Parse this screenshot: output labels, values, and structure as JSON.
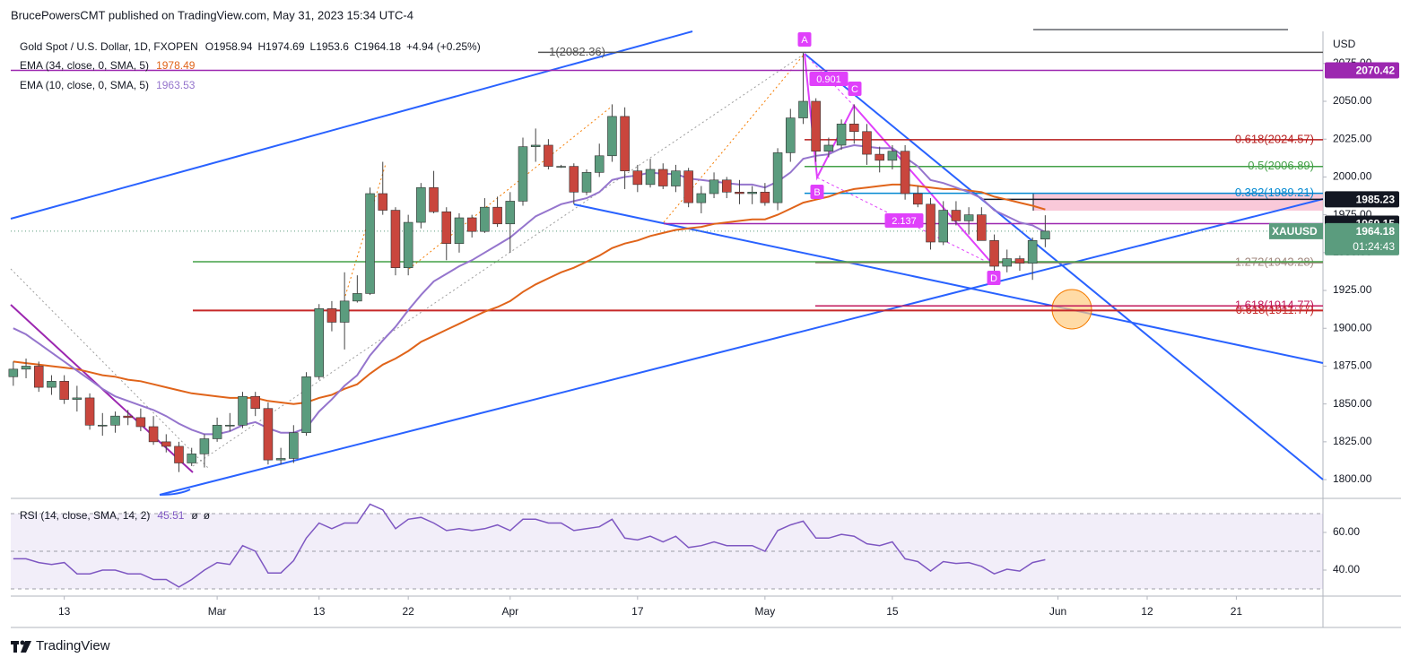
{
  "header": {
    "text": "BrucePowersCMT published on TradingView.com, May 31, 2023 15:34 UTC-4"
  },
  "footer": {
    "brand": "TradingView"
  },
  "chart_data": [
    {
      "type": "candlestick",
      "title": "Gold Spot / U.S. Dollar, 1D, FXOPEN",
      "ohlc_labels": [
        "O",
        "H",
        "L",
        "C"
      ],
      "change": "+4.94 (+0.25%)",
      "currency": "USD",
      "symbol": "XAUUSD",
      "countdown": "01:24:43",
      "up_color": "#5b9c7e",
      "down_color": "#c9463d",
      "open": [
        1868,
        1873,
        1875,
        1861,
        1865,
        1853,
        1854,
        1836,
        1836,
        1842,
        1841,
        1835,
        1825,
        1822,
        1811,
        1817,
        1827,
        1836,
        1836,
        1855,
        1847,
        1813,
        1814,
        1831,
        1868,
        1913,
        1904,
        1918,
        1923,
        1989,
        1978,
        1940,
        1970,
        1993,
        1977,
        1956,
        1973,
        1964,
        1980,
        1969,
        1984,
        2020,
        2021,
        2007,
        2007,
        1990,
        2003,
        2014,
        2040,
        2004,
        1995,
        2005,
        1994,
        2004,
        1983,
        1989,
        1998,
        1990,
        1989,
        1990,
        1983,
        2016,
        2039,
        2050,
        2017,
        2021,
        2035,
        2030,
        2015,
        2011,
        2017,
        1989,
        1982,
        1957,
        1978,
        1971,
        1975,
        1958,
        1941,
        1946,
        1943,
        1958.94
      ],
      "high": [
        1878,
        1880,
        1878,
        1869,
        1869,
        1862,
        1857,
        1844,
        1845,
        1846,
        1847,
        1842,
        1830,
        1825,
        1821,
        1830,
        1841,
        1844,
        1858,
        1858,
        1851,
        1821,
        1836,
        1871,
        1916,
        1918,
        1937,
        1935,
        1993,
        2010,
        1980,
        1975,
        1996,
        2004,
        1980,
        1976,
        1975,
        1986,
        1987,
        1990,
        2026,
        2032,
        2025,
        2008,
        2009,
        2005,
        2022,
        2048,
        2046,
        2008,
        2012,
        2009,
        2008,
        2006,
        1994,
        2003,
        2000,
        1998,
        1994,
        1996,
        2019,
        2045,
        2082,
        2052,
        2026,
        2038,
        2048,
        2035,
        2020,
        2021,
        2021,
        1994,
        1986,
        1984,
        1984,
        1980,
        1980,
        1962,
        1952,
        1948,
        1960,
        1974.69
      ],
      "low": [
        1862,
        1867,
        1858,
        1856,
        1850,
        1845,
        1833,
        1829,
        1831,
        1836,
        1832,
        1823,
        1818,
        1805,
        1809,
        1808,
        1825,
        1832,
        1834,
        1842,
        1810,
        1810,
        1811,
        1829,
        1866,
        1898,
        1886,
        1917,
        1922,
        1975,
        1935,
        1935,
        1966,
        1976,
        1945,
        1950,
        1960,
        1963,
        1967,
        1950,
        1981,
        2010,
        2005,
        2006,
        1982,
        1988,
        2000,
        2010,
        1992,
        1990,
        1993,
        1992,
        1990,
        1980,
        1976,
        1986,
        1986,
        1982,
        1982,
        1981,
        1978,
        2010,
        2035,
        2010,
        2013,
        2018,
        2022,
        2008,
        2003,
        2005,
        1985,
        1980,
        1952,
        1955,
        1968,
        1962,
        1958,
        1936,
        1937,
        1938,
        1932,
        1953.6
      ],
      "close": [
        1873,
        1875,
        1861,
        1865,
        1853,
        1854,
        1836,
        1836,
        1842,
        1841,
        1835,
        1825,
        1822,
        1811,
        1817,
        1827,
        1836,
        1836,
        1855,
        1847,
        1813,
        1814,
        1831,
        1868,
        1913,
        1904,
        1918,
        1923,
        1989,
        1978,
        1940,
        1970,
        1993,
        1977,
        1956,
        1973,
        1964,
        1980,
        1969,
        1984,
        2020,
        2021,
        2007,
        2007,
        1990,
        2003,
        2014,
        2040,
        2004,
        1995,
        2005,
        1994,
        2004,
        1983,
        1989,
        1998,
        1990,
        1989,
        1990,
        1983,
        2016,
        2039,
        2050,
        2017,
        2021,
        2035,
        2030,
        2015,
        2011,
        2017,
        1989,
        1982,
        1957,
        1978,
        1971,
        1975,
        1958,
        1941,
        1946,
        1943,
        1958,
        1964.18
      ],
      "series": [
        {
          "name": "EMA (34, close, 0, SMA, 5)",
          "color": "#e0641a",
          "values": [
            1878,
            1877,
            1876,
            1875,
            1874,
            1873,
            1871,
            1869,
            1868,
            1866,
            1865,
            1863,
            1861,
            1859,
            1857,
            1856,
            1855,
            1854,
            1854,
            1854,
            1852,
            1851,
            1850,
            1851,
            1854,
            1856,
            1860,
            1863,
            1870,
            1876,
            1880,
            1885,
            1891,
            1895,
            1899,
            1903,
            1907,
            1911,
            1914,
            1918,
            1924,
            1929,
            1933,
            1937,
            1940,
            1944,
            1948,
            1953,
            1956,
            1958,
            1961,
            1963,
            1965,
            1966,
            1967,
            1969,
            1970,
            1971,
            1972,
            1972,
            1975,
            1979,
            1983,
            1985,
            1987,
            1990,
            1992,
            1993,
            1994,
            1995,
            1995,
            1994,
            1993,
            1992,
            1992,
            1991,
            1990,
            1987,
            1985,
            1983,
            1981,
            1978.49
          ]
        },
        {
          "name": "EMA (10, close, 0, SMA, 5)",
          "color": "#9575cd",
          "values": [
            1900,
            1896,
            1890,
            1884,
            1878,
            1872,
            1866,
            1860,
            1855,
            1852,
            1849,
            1846,
            1842,
            1837,
            1833,
            1830,
            1830,
            1832,
            1836,
            1838,
            1834,
            1831,
            1831,
            1834,
            1845,
            1853,
            1862,
            1869,
            1882,
            1892,
            1901,
            1912,
            1922,
            1931,
            1936,
            1941,
            1945,
            1950,
            1955,
            1960,
            1967,
            1974,
            1978,
            1982,
            1984,
            1986,
            1990,
            1998,
            2000,
            2001,
            2003,
            2002,
            2002,
            1999,
            1998,
            1997,
            1996,
            1995,
            1995,
            1993,
            1997,
            2003,
            2012,
            2014,
            2015,
            2019,
            2021,
            2020,
            2019,
            2019,
            2013,
            2007,
            1998,
            1996,
            1993,
            1990,
            1986,
            1978,
            1974,
            1970,
            1968,
            1963.53
          ]
        }
      ],
      "xlim": [
        -0.2,
        102.8
      ],
      "xticks": [
        {
          "value": 4,
          "label": "13"
        },
        {
          "value": 16,
          "label": "Mar"
        },
        {
          "value": 24,
          "label": "13"
        },
        {
          "value": 31,
          "label": "22"
        },
        {
          "value": 39,
          "label": "Apr"
        },
        {
          "value": 49,
          "label": "17"
        },
        {
          "value": 59,
          "label": "May"
        },
        {
          "value": 69,
          "label": "15"
        },
        {
          "value": 82,
          "label": "Jun"
        },
        {
          "value": 89,
          "label": "12"
        },
        {
          "value": 96,
          "label": "21"
        }
      ],
      "ylim": [
        1788.2,
        2096.2
      ],
      "yticks": [
        {
          "value": 1800,
          "label": "1800.00"
        },
        {
          "value": 1825,
          "label": "1825.00"
        },
        {
          "value": 1850,
          "label": "1850.00"
        },
        {
          "value": 1875,
          "label": "1875.00"
        },
        {
          "value": 1900,
          "label": "1900.00"
        },
        {
          "value": 1925,
          "label": "1925.00"
        },
        {
          "value": 1950,
          "label": "1950.00"
        },
        {
          "value": 1975,
          "label": "1975.00"
        },
        {
          "value": 2000,
          "label": "2000.00"
        },
        {
          "value": 2025,
          "label": "2025.00"
        },
        {
          "value": 2050,
          "label": "2050.00"
        },
        {
          "value": 2075,
          "label": "2075.00"
        }
      ],
      "levels": [
        {
          "label": "1(2082.36)",
          "value": 2082.36,
          "color": "#555555"
        },
        {
          "label": "0.618(2024.57)",
          "value": 2024.57,
          "color": "#b71c1c"
        },
        {
          "label": "0.5(2006.89)",
          "value": 2006.89,
          "color": "#43a047"
        },
        {
          "label": "0.382(1989.21)",
          "value": 1989.21,
          "color": "#0288d1"
        },
        {
          "label": "1.272(1943.28)",
          "value": 1943.28,
          "color": "#a1887f"
        },
        {
          "label": "1.618(1914.77)",
          "value": 1914.77,
          "color": "#c2185b"
        },
        {
          "label": "0.618(1911.77)",
          "value": 1911.77,
          "color": "#c62828"
        }
      ],
      "hlines": [
        {
          "value": 1944,
          "color": "#43a047"
        }
      ],
      "price_tags": [
        {
          "value": 2070.42,
          "color": "#9c27b0"
        },
        {
          "value": 1985.23,
          "color": "#131722"
        },
        {
          "value": 1969.15,
          "color": "#131722"
        }
      ],
      "annotations": [
        {
          "text": "A"
        },
        {
          "text": "B"
        },
        {
          "text": "C"
        },
        {
          "text": "D"
        },
        {
          "text": "0.901"
        },
        {
          "text": "2.137"
        }
      ]
    },
    {
      "type": "line",
      "series": [
        {
          "name": "RSI (14, close, SMA, 14, 2)",
          "color": "#7e57c2",
          "values": [
            46,
            46,
            44,
            43,
            44,
            38,
            38,
            40,
            40,
            38,
            38,
            35,
            35,
            31,
            35,
            40,
            44,
            43,
            53,
            50,
            38.5,
            38.5,
            45,
            57,
            65,
            62,
            65,
            65,
            75,
            72,
            62,
            67,
            68,
            65,
            61,
            62,
            61,
            62,
            64,
            61,
            67,
            67,
            65,
            65,
            61,
            62,
            63,
            67,
            57,
            56,
            58,
            55,
            58,
            52,
            53,
            55,
            53,
            53,
            53,
            50,
            61,
            64,
            66,
            57,
            57,
            59,
            58,
            54,
            53,
            55,
            46,
            44.5,
            39.5,
            44.5,
            43.5,
            44,
            42,
            38,
            40.5,
            39.5,
            44,
            45.51
          ]
        }
      ],
      "legend_extra": [
        "ø",
        "ø"
      ],
      "ylim": [
        26.2,
        77.6
      ],
      "yticks": [
        {
          "value": 40,
          "label": "40.00"
        },
        {
          "value": 60,
          "label": "60.00"
        }
      ],
      "levels": [
        30,
        50,
        70
      ]
    }
  ]
}
